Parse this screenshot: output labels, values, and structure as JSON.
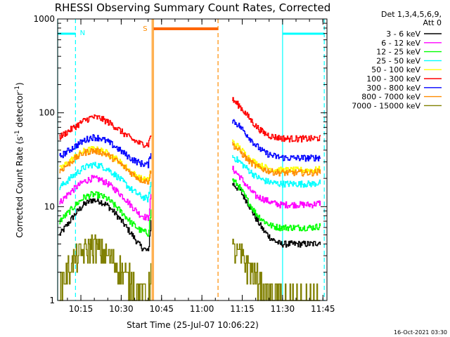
{
  "chart_data": {
    "type": "line",
    "title": "RHESSI Observing Summary Count Rates, Corrected",
    "xlabel": "Start Time (25-Jul-07 10:06:22)",
    "ylabel": "Corrected Count Rate (s",
    "ylabel_sup1": "-1",
    "ylabel_mid": " detector",
    "ylabel_sup2": "-1",
    "ylabel_end": ")",
    "y_scale": "log",
    "ylim": [
      1,
      1000
    ],
    "xlim": [
      "10:06:22",
      "11:46:30"
    ],
    "x_ticks": [
      "10:15",
      "10:30",
      "10:45",
      "11:00",
      "11:15",
      "11:30",
      "11:45"
    ],
    "y_ticks": [
      "1",
      "10",
      "100",
      "1000"
    ],
    "legend_header": [
      "Det 1,3,4,5,6,9,",
      "Att 0"
    ],
    "legend_position": "right-outside",
    "timestamp": "16-Oct-2021 03:30",
    "flags": [
      {
        "label": "N",
        "color": "#00ffff"
      },
      {
        "label": "S",
        "color": "#ff8c00"
      }
    ],
    "night_bars": [
      {
        "start": "10:06:22",
        "end": "10:13:00",
        "color": "#00ffff"
      },
      {
        "start": "11:30:00",
        "end": "11:45:30",
        "color": "#00ffff"
      }
    ],
    "saa_bar": {
      "start": "10:42:00",
      "end": "11:06:00",
      "color": "#ff6600"
    },
    "vertical_lines": [
      {
        "time": "10:06:22",
        "color": "#00ffff",
        "style": "solid"
      },
      {
        "time": "10:13:00",
        "color": "#00ffff",
        "style": "dashed"
      },
      {
        "time": "10:41:30",
        "color": "#ff8c00",
        "style": "solid"
      },
      {
        "time": "10:42:00",
        "color": "#ff8c00",
        "style": "solid"
      },
      {
        "time": "11:06:00",
        "color": "#ff8c00",
        "style": "dashed"
      },
      {
        "time": "11:30:00",
        "color": "#00ffff",
        "style": "solid"
      },
      {
        "time": "11:45:30",
        "color": "#00ffff",
        "style": "dashed"
      }
    ],
    "gap": {
      "start": "10:41:30",
      "end": "11:10:30"
    },
    "x": [
      "10:07",
      "10:10",
      "10:13",
      "10:16",
      "10:19",
      "10:22",
      "10:25",
      "10:28",
      "10:31",
      "10:34",
      "10:37",
      "10:40",
      "10:41",
      "11:11",
      "11:14",
      "11:17",
      "11:20",
      "11:23",
      "11:26",
      "11:29",
      "11:32",
      "11:35",
      "11:38",
      "11:41",
      "11:44"
    ],
    "series": [
      {
        "name": "3 - 6 keV",
        "color": "#000000",
        "values": [
          5,
          6.5,
          8.5,
          10.5,
          11.8,
          11.5,
          10.2,
          8.3,
          6.5,
          5,
          3.8,
          3.3,
          7,
          18,
          15,
          11,
          7.5,
          5.5,
          4.5,
          4,
          4,
          4,
          4,
          4,
          4.2
        ]
      },
      {
        "name": "6 - 12 keV",
        "color": "#ff00ff",
        "values": [
          11,
          13.5,
          16,
          18.5,
          20,
          19.5,
          17.5,
          15,
          12.5,
          10,
          8.2,
          7.5,
          13,
          26,
          21,
          16,
          13,
          12,
          11,
          10.5,
          10.5,
          10.5,
          10.5,
          10.5,
          11
        ]
      },
      {
        "name": "12 - 25 keV",
        "color": "#00ff00",
        "values": [
          7,
          8.5,
          10.5,
          12.5,
          13.5,
          13.2,
          12,
          10,
          8.2,
          6.6,
          5.6,
          5.2,
          9,
          20,
          16,
          11.5,
          8.5,
          7,
          6.2,
          6,
          6,
          6,
          6,
          6,
          6.2
        ]
      },
      {
        "name": "25 - 50 keV",
        "color": "#00ffff",
        "values": [
          16,
          19,
          22.5,
          26,
          28,
          27.5,
          25,
          21.5,
          18,
          15,
          13,
          12,
          18,
          35,
          30,
          25,
          21,
          19,
          18,
          17.5,
          17.5,
          17.5,
          17.5,
          17.5,
          18
        ]
      },
      {
        "name": "50 - 100 keV",
        "color": "#ffff00",
        "values": [
          25,
          29.5,
          34.5,
          39,
          41,
          40,
          37,
          32.5,
          27.5,
          23,
          20,
          19,
          25,
          50,
          42,
          34,
          29,
          26.5,
          25,
          24.5,
          24.5,
          24.5,
          24.5,
          24.5,
          25
        ]
      },
      {
        "name": "100 - 300 keV",
        "color": "#ff0000",
        "values": [
          55,
          63,
          72,
          82,
          90,
          88,
          80,
          70,
          60,
          52,
          47,
          46,
          60,
          140,
          118,
          92,
          72,
          61,
          56,
          54,
          53,
          53,
          53,
          53,
          54
        ]
      },
      {
        "name": "300 - 800 keV",
        "color": "#0000ff",
        "values": [
          34,
          39,
          44.5,
          50.5,
          55,
          54,
          49,
          43,
          37,
          32,
          29,
          28,
          38,
          85,
          72,
          57,
          45,
          38,
          35,
          33.5,
          33,
          33,
          33,
          33,
          33.5
        ]
      },
      {
        "name": "800 - 7000 keV",
        "color": "#ff8c00",
        "values": [
          24,
          28,
          33,
          37.5,
          39.5,
          38.5,
          35.5,
          31,
          26.5,
          22.5,
          19.5,
          18.5,
          24,
          47,
          39,
          31.5,
          27,
          25,
          23.5,
          23,
          23,
          23,
          23,
          23,
          23.5
        ]
      },
      {
        "name": "7000 - 15000 keV",
        "color": "#808000",
        "values": [
          1.5,
          2.2,
          2.8,
          3.3,
          3.8,
          3.5,
          3,
          2.6,
          2,
          1.6,
          1.3,
          1.2,
          2.5,
          3.5,
          3,
          2.5,
          1.8,
          1.3,
          1.2,
          1.1,
          1,
          1,
          1,
          1,
          1
        ]
      }
    ]
  }
}
